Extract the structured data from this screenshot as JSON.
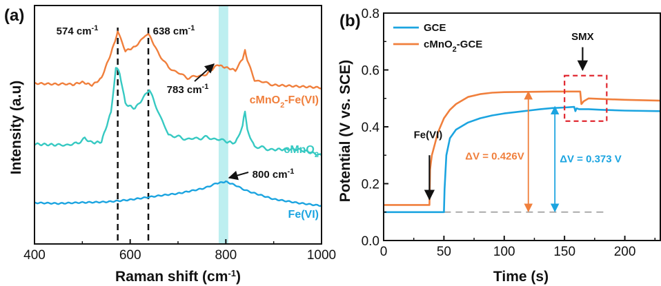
{
  "chart_data": [
    {
      "type": "line",
      "panel": "(a)",
      "xlabel": "Raman shift (cm-1)",
      "ylabel": "Intensity (a.u)",
      "xlim": [
        400,
        1000
      ],
      "xticks": [
        400,
        600,
        800,
        1000
      ],
      "y_ticks_shown": false,
      "colors": {
        "cMnO2-Fe(VI)": "#f07f3c",
        "cMnO2": "#36c9c2",
        "Fe(VI)": "#1ba4e0",
        "band": "#bdeff0"
      },
      "series": [
        {
          "name": "cMnO2-Fe(VI)",
          "x": [
            400,
            450,
            480,
            500,
            520,
            540,
            560,
            574,
            590,
            610,
            625,
            638,
            655,
            680,
            720,
            760,
            783,
            800,
            820,
            835,
            840,
            845,
            860,
            900,
            950,
            1000
          ],
          "y": [
            0.08,
            0.06,
            0.05,
            0.08,
            0.05,
            0.15,
            0.5,
            0.82,
            0.55,
            0.6,
            0.72,
            0.8,
            0.55,
            0.3,
            0.15,
            0.2,
            0.35,
            0.3,
            0.25,
            0.42,
            0.55,
            0.4,
            0.12,
            0.05,
            0.02,
            0.0
          ]
        },
        {
          "name": "cMnO2",
          "x": [
            400,
            450,
            490,
            505,
            520,
            540,
            560,
            570,
            578,
            590,
            610,
            625,
            640,
            655,
            680,
            720,
            760,
            800,
            820,
            835,
            840,
            845,
            860,
            900,
            950,
            1000
          ],
          "y": [
            0.05,
            0.03,
            0.05,
            0.12,
            0.06,
            0.08,
            0.4,
            0.9,
            0.85,
            0.5,
            0.45,
            0.55,
            0.65,
            0.45,
            0.15,
            0.1,
            0.12,
            0.08,
            0.05,
            0.25,
            0.42,
            0.2,
            0.02,
            -0.02,
            -0.02,
            -0.08
          ]
        },
        {
          "name": "Fe(VI)",
          "x": [
            400,
            450,
            500,
            550,
            600,
            650,
            700,
            750,
            780,
            800,
            820,
            850,
            900,
            950,
            1000
          ],
          "y": [
            0.05,
            0.03,
            0.06,
            0.08,
            0.12,
            0.18,
            0.24,
            0.35,
            0.45,
            0.5,
            0.42,
            0.28,
            0.12,
            0.05,
            0.0
          ]
        }
      ],
      "annotations": [
        {
          "text": "574 cm",
          "sup": "-1",
          "x": 574
        },
        {
          "text": "638 cm",
          "sup": "-1",
          "x": 638
        },
        {
          "text": "783 cm",
          "sup": "-1",
          "x": 783
        },
        {
          "text": "800 cm",
          "sup": "-1",
          "x": 800
        }
      ],
      "dashed_lines_x": [
        574,
        638
      ],
      "band_x": [
        785,
        805
      ],
      "series_labels": [
        {
          "parts": [
            "cMnO",
            "2",
            "-Fe(VI)"
          ]
        },
        {
          "parts": [
            "cMnO",
            "2",
            ""
          ]
        },
        {
          "parts": [
            "Fe(VI)",
            "",
            ""
          ]
        }
      ]
    },
    {
      "type": "line",
      "panel": "(b)",
      "xlabel": "Time (s)",
      "ylabel": "Potential (V vs. SCE)",
      "xlim": [
        0,
        230
      ],
      "ylim": [
        0.0,
        0.8
      ],
      "xticks": [
        0,
        50,
        100,
        150,
        200
      ],
      "yticks": [
        "0.0",
        "0.2",
        "0.4",
        "0.6",
        "0.8"
      ],
      "legend": "top-left",
      "colors": {
        "GCE": "#1ba4e0",
        "cMnO2-GCE": "#f07f3c"
      },
      "series": [
        {
          "name": "GCE",
          "x": [
            0,
            50,
            50.5,
            52,
            55,
            60,
            70,
            80,
            90,
            100,
            110,
            120,
            130,
            140,
            150,
            158,
            159,
            160,
            162,
            170,
            180,
            200,
            230
          ],
          "y": [
            0.1,
            0.1,
            0.18,
            0.3,
            0.36,
            0.39,
            0.415,
            0.43,
            0.44,
            0.447,
            0.452,
            0.457,
            0.462,
            0.466,
            0.468,
            0.47,
            0.455,
            0.465,
            0.462,
            0.462,
            0.46,
            0.457,
            0.455
          ]
        },
        {
          "name": "cMnO2-GCE",
          "x": [
            0,
            38,
            38.5,
            40,
            45,
            50,
            55,
            60,
            70,
            80,
            90,
            100,
            120,
            140,
            160,
            163,
            164,
            166,
            170,
            180,
            200,
            230
          ],
          "y": [
            0.125,
            0.125,
            0.25,
            0.3,
            0.38,
            0.43,
            0.46,
            0.48,
            0.505,
            0.515,
            0.52,
            0.522,
            0.523,
            0.524,
            0.524,
            0.524,
            0.48,
            0.49,
            0.5,
            0.498,
            0.495,
            0.492
          ]
        }
      ],
      "legend_entries": [
        {
          "parts": [
            "GCE",
            "",
            ""
          ]
        },
        {
          "parts": [
            "cMnO",
            "2",
            "-GCE"
          ]
        }
      ],
      "baseline_y": 0.1,
      "annotations": {
        "fe": "Fe(VI)",
        "smx": "SMX",
        "dv1": "ΔV = 0.426V",
        "dv2": "ΔV = 0.373 V"
      },
      "arrows": {
        "dv1": {
          "x": 120,
          "y1": 0.1,
          "y2": 0.526
        },
        "dv2": {
          "x": 142,
          "y1": 0.1,
          "y2": 0.473
        },
        "fe": {
          "x": 38,
          "y_from": 0.3,
          "y_to": 0.145
        },
        "smx": {
          "x": 165,
          "y_from": 0.68,
          "y_to": 0.6
        }
      },
      "highlight_box": {
        "x": [
          150,
          185
        ],
        "y": [
          0.42,
          0.58
        ]
      }
    }
  ]
}
